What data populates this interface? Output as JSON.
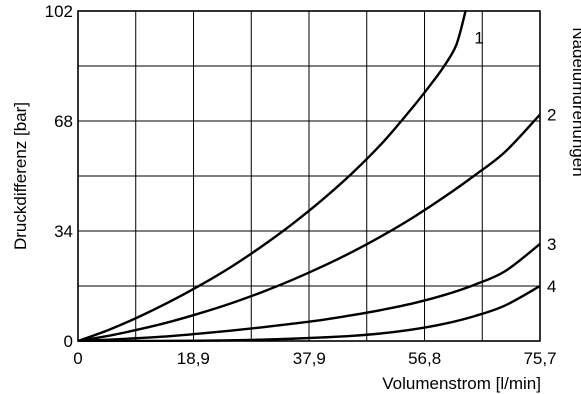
{
  "chart_data": {
    "type": "line",
    "title": "",
    "xlabel": "Volumenstrom [l/min]",
    "ylabel": "Druckdifferenz [bar]",
    "right_label": "Nadelumdrehungen",
    "xlim": [
      0,
      75.7
    ],
    "ylim": [
      0,
      102
    ],
    "x_ticks": [
      0,
      18.9,
      37.9,
      56.8,
      75.7
    ],
    "x_tick_labels": [
      "0",
      "18,9",
      "37,9",
      "56,8",
      "75,7"
    ],
    "y_ticks": [
      0,
      34,
      68,
      102
    ],
    "y_tick_labels": [
      "0",
      "34",
      "68",
      "102"
    ],
    "grid": true,
    "grid_x": [
      0,
      9.46,
      18.93,
      28.39,
      37.85,
      47.31,
      56.78,
      66.24,
      75.7
    ],
    "grid_y": [
      0,
      17,
      34,
      51,
      68,
      85,
      102
    ],
    "line_color": "#000000",
    "series": [
      {
        "name": "1",
        "x": [
          0,
          5,
          10,
          15,
          20,
          25,
          30,
          35,
          40,
          45,
          50,
          55,
          58,
          60,
          62,
          63.5
        ],
        "y": [
          0,
          3.4,
          7.5,
          12.1,
          17.2,
          22.8,
          29.1,
          36.0,
          43.6,
          52.0,
          61.5,
          72.6,
          79.8,
          85.0,
          91.6,
          102
        ]
      },
      {
        "name": "2",
        "x": [
          0,
          5,
          10,
          15,
          20,
          25,
          30,
          35,
          40,
          45,
          50,
          55,
          60,
          65,
          70,
          75.7
        ],
        "y": [
          0,
          1.6,
          3.6,
          5.9,
          8.6,
          11.6,
          15.0,
          18.8,
          23.0,
          27.6,
          32.7,
          38.3,
          44.5,
          51.2,
          58.5,
          70.0
        ]
      },
      {
        "name": "3",
        "x": [
          0,
          5,
          10,
          15,
          20,
          25,
          30,
          35,
          40,
          45,
          50,
          55,
          60,
          65,
          70,
          75.7
        ],
        "y": [
          0,
          0.4,
          0.9,
          1.5,
          2.3,
          3.2,
          4.2,
          5.3,
          6.5,
          8.0,
          9.7,
          11.7,
          14.2,
          17.4,
          21.6,
          30.0
        ]
      },
      {
        "name": "4",
        "x": [
          0,
          10,
          20,
          25,
          30,
          35,
          40,
          45,
          50,
          55,
          60,
          65,
          70,
          75.7
        ],
        "y": [
          0,
          0.0,
          0.1,
          0.2,
          0.4,
          0.7,
          1.1,
          1.6,
          2.4,
          3.6,
          5.3,
          7.7,
          11.0,
          17.0
        ]
      }
    ]
  }
}
